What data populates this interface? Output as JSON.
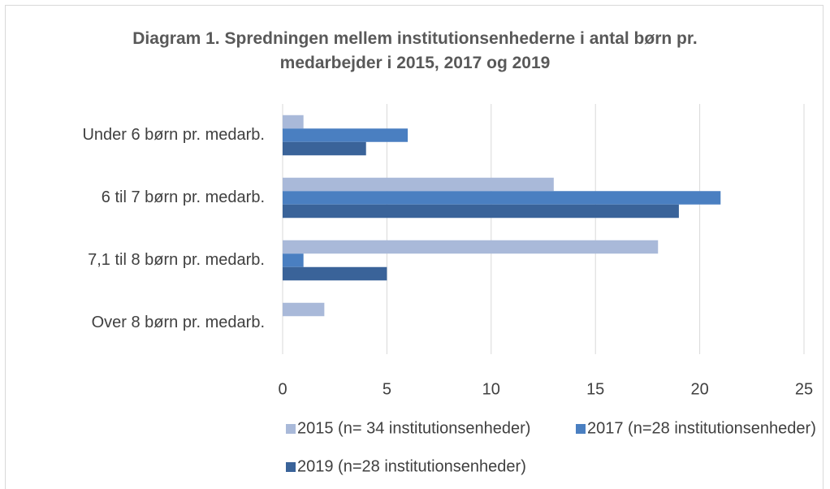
{
  "chart_data": {
    "type": "hbar",
    "title": "Diagram 1. Spredningen mellem institutionsenhederne i antal børn pr. medarbejder i 2015, 2017 og 2019",
    "categories": [
      "Under 6 børn pr. medarb.",
      "6 til 7 børn pr. medarb.",
      "7,1 til 8 børn pr. medarb.",
      "Over 8 børn pr. medarb."
    ],
    "series": [
      {
        "name": "2015 (n= 34 institutionsenheder)",
        "color": "#a9b9d9",
        "values": [
          1,
          13,
          18,
          2
        ]
      },
      {
        "name": "2017 (n=28 institutionsenheder)",
        "color": "#4a7fc1",
        "values": [
          6,
          21,
          1,
          0
        ]
      },
      {
        "name": "2019 (n=28 institutionsenheder)",
        "color": "#3a6399",
        "values": [
          4,
          19,
          5,
          0
        ]
      }
    ],
    "xlim": [
      0,
      25
    ],
    "xticks": [
      0,
      5,
      10,
      15,
      20,
      25
    ],
    "grid": true
  }
}
